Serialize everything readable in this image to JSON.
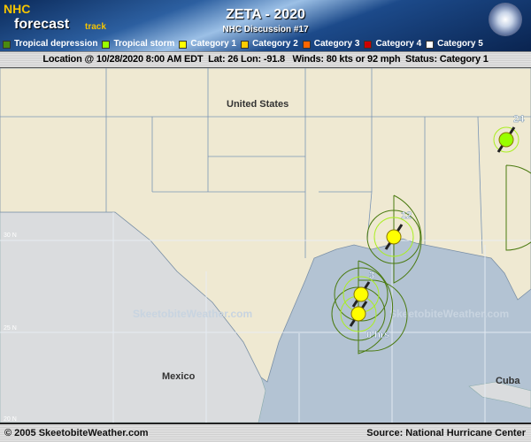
{
  "header": {
    "logo": {
      "nhc": "NHC",
      "forecast": "forecast",
      "track": "track"
    },
    "title": "ZETA - 2020",
    "subtitle": "NHC Discussion #17"
  },
  "legend": [
    {
      "label": "Tropical depression",
      "color": "#4a8a10"
    },
    {
      "label": "Tropical storm",
      "color": "#99ff00"
    },
    {
      "label": "Category 1",
      "color": "#ffff00"
    },
    {
      "label": "Category 2",
      "color": "#ffcc00"
    },
    {
      "label": "Category 3",
      "color": "#ff6600"
    },
    {
      "label": "Category 4",
      "color": "#cc0000"
    },
    {
      "label": "Category 5",
      "color": "#ffffff"
    }
  ],
  "info": {
    "text": "Location @ 10/28/2020 8:00 AM EDT  Lat: 26 Lon: -91.8   Winds: 80 kts or 92 mph  Status: Category 1"
  },
  "map": {
    "labels": {
      "us": "United States",
      "mexico": "Mexico",
      "cuba": "Cuba",
      "lat30": "30 N",
      "lat25": "25 N",
      "lat20": "20 N"
    },
    "watermark": "SkeetobiteWeather.com",
    "forecast_points": [
      {
        "label": "0 hrs",
        "category": "Category 1"
      },
      {
        "label": "3",
        "category": "Category 1"
      },
      {
        "label": "12",
        "category": "Category 1"
      },
      {
        "label": "24",
        "category": "Tropical storm"
      }
    ]
  },
  "footer": {
    "copyright": "© 2005 SkeetobiteWeather.com",
    "source": "Source: National Hurricane Center"
  }
}
